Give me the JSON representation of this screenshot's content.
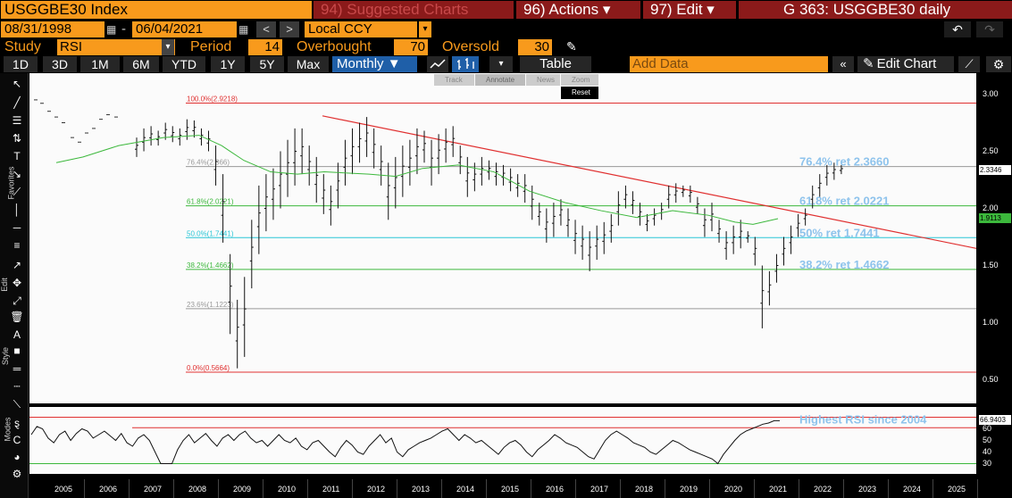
{
  "header": {
    "ticker": "USGGBE30 Index",
    "suggested": "94) Suggested Charts",
    "actions": "96) Actions ▾",
    "edit": "97) Edit ▾",
    "chart_title": "G 363: USGGBE30 daily"
  },
  "dates": {
    "start": "08/31/1998",
    "end": "06/04/2021",
    "currency": "Local CCY",
    "sep": "-"
  },
  "study": {
    "label": "Study",
    "value": "RSI",
    "period_label": "Period",
    "period": "14",
    "overbought_label": "Overbought",
    "overbought": "70",
    "oversold_label": "Oversold",
    "oversold": "30"
  },
  "ranges": [
    "1D",
    "3D",
    "1M",
    "6M",
    "YTD",
    "1Y",
    "5Y",
    "Max"
  ],
  "frequency": "Monthly ▼",
  "table_label": "Table",
  "add_data_placeholder": "Add Data",
  "edit_chart": "Edit Chart",
  "mini_toolbar": {
    "track": "Track",
    "annotate": "Annotate",
    "news": "News",
    "zoom": "Zoom",
    "reset": "Reset"
  },
  "side_labels": {
    "favorites": "Favorites",
    "edit": "Edit",
    "style": "Style",
    "modes": "Modes"
  },
  "fib_annotations": [
    {
      "text": "100.0%(2.9218)",
      "level": 2.9218,
      "color": "#e03030"
    },
    {
      "text": "76.4%(2.366)",
      "level": 2.366,
      "color": "#999999"
    },
    {
      "text": "61.8%(2.0221)",
      "level": 2.0221,
      "color": "#3cb83c"
    },
    {
      "text": "50.0%(1.7441)",
      "level": 1.7441,
      "color": "#29c6d6"
    },
    {
      "text": "38.2%(1.4662)",
      "level": 1.4662,
      "color": "#3cb83c"
    },
    {
      "text": "23.6%(1.1223)",
      "level": 1.1223,
      "color": "#999999"
    },
    {
      "text": "0.0%(0.5664)",
      "level": 0.5664,
      "color": "#e03030"
    }
  ],
  "fib_callouts": [
    {
      "text": "76.4% ret 2.3660",
      "level": 2.366
    },
    {
      "text": "61.8% ret 2.0221",
      "level": 2.0221
    },
    {
      "text": "50% ret 1.7441",
      "level": 1.7441
    },
    {
      "text": "38.2% ret 1.4662",
      "level": 1.4662
    }
  ],
  "rsi_callout": "Highest RSI since 2004",
  "price_axis": [
    "3.00",
    "2.50",
    "2.00",
    "1.50",
    "1.00",
    "0.50"
  ],
  "price_flags": [
    {
      "text": "2.3346",
      "level": 2.3346,
      "bg": "#ffffff",
      "fg": "#000000"
    },
    {
      "text": "1.9113",
      "level": 1.9113,
      "bg": "#3cb83c",
      "fg": "#000000"
    }
  ],
  "rsi_axis": [
    "60",
    "50",
    "40",
    "30"
  ],
  "rsi_flag": "66.9403",
  "years": [
    "2005",
    "2006",
    "2007",
    "2008",
    "2009",
    "2010",
    "2011",
    "2012",
    "2013",
    "2014",
    "2015",
    "2016",
    "2017",
    "2018",
    "2019",
    "2020",
    "2021",
    "2022",
    "2023",
    "2024",
    "2025"
  ],
  "colors": {
    "accent": "#f89a1c",
    "tab_bg": "#8b1a1a",
    "callout": "#8ec3ec",
    "trendline": "#e03030",
    "ma": "#3cb83c"
  }
}
